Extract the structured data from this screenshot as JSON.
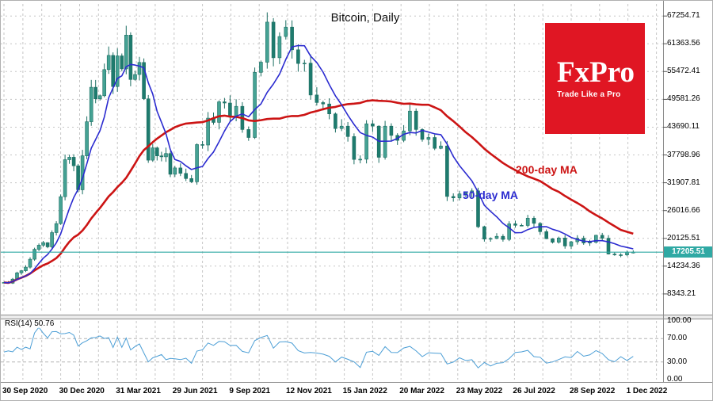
{
  "chart_data": {
    "type": "candlestick",
    "title": "Bitcoin, Daily",
    "x_tick_labels": [
      "30 Sep 2020",
      "30 Dec 2020",
      "31 Mar 2021",
      "29 Jun 2021",
      "9 Sep 2021",
      "12 Nov 2021",
      "15 Jan 2022",
      "20 Mar 2022",
      "23 May 2022",
      "26 Jul 2022",
      "28 Sep 2022",
      "1 Dec 2022"
    ],
    "x_tick_days": [
      0,
      91,
      182,
      272,
      344,
      408,
      472,
      536,
      600,
      664,
      728,
      792
    ],
    "y_tick_labels": [
      "67254.71",
      "61363.56",
      "55472.41",
      "49581.26",
      "43690.11",
      "37798.96",
      "31907.81",
      "26016.66",
      "20125.51",
      "14234.36",
      "8343.21"
    ],
    "y_range": [
      4300,
      69800
    ],
    "point_step_days": 7,
    "closes": [
      10780,
      10620,
      11480,
      12820,
      13270,
      14020,
      15700,
      17800,
      18680,
      19210,
      18320,
      21350,
      23240,
      28950,
      36800,
      37320,
      35500,
      30420,
      37620,
      44850,
      52150,
      49700,
      50350,
      55900,
      58900,
      52300,
      58800,
      56050,
      63200,
      53800,
      54850,
      57400,
      49700,
      36700,
      39300,
      37600,
      37400,
      38100,
      33700,
      35050,
      33900,
      32800,
      32100,
      40000,
      39900,
      45600,
      44700,
      49050,
      48800,
      46000,
      48100,
      43200,
      41500,
      55300,
      57450,
      65950,
      58400,
      62900,
      64900,
      60100,
      57200,
      57250,
      50500,
      48900,
      48600,
      46500,
      43400,
      43900,
      41700,
      36850,
      36900,
      44400,
      43900,
      37300,
      43900,
      41950,
      40900,
      42900,
      47100,
      43200,
      41100,
      41500,
      39200,
      39700,
      29000,
      28700,
      29550,
      29800,
      30200,
      22600,
      19970,
      20100,
      20550,
      19900,
      23200,
      22900,
      22850,
      24400,
      23300,
      21550,
      20050,
      19300,
      20200,
      18500,
      19400,
      20160,
      19150,
      19300,
      20770,
      20150,
      16800,
      16650,
      16600,
      17160,
      17205.51
    ],
    "overlays": [
      {
        "name": "50-day MA",
        "label_text": "50-day MA",
        "window_points": 7
      },
      {
        "name": "200-day MA",
        "label_text": "200-day MA",
        "window_points": 29
      }
    ],
    "current_price": 17205.51,
    "current_price_label": "17205.51",
    "indicator": {
      "name": "RSI",
      "period": 14,
      "label": "RSI(14) 50.76",
      "last_value": 50.76,
      "tick_labels": [
        "100.00",
        "70.00",
        "30.00",
        "0.00"
      ],
      "level_lines": [
        70,
        30
      ],
      "range": [
        0,
        100
      ]
    }
  },
  "logo": {
    "name": "FxPro",
    "tagline": "Trade Like a Pro"
  },
  "colors": {
    "candle_up": "#45a294",
    "candle_down": "#1e7b6e",
    "candle_wick": "#1c6e62",
    "ma50": "#2b2bd0",
    "ma200": "#cc1414",
    "price_line": "#2fa9a4",
    "price_tag_bg": "#2fa9a4",
    "rsi_line": "#4d9fd6",
    "grid": "#c6c6c6",
    "axis_border": "#8c8c8c",
    "logo_bg": "#e01623"
  }
}
